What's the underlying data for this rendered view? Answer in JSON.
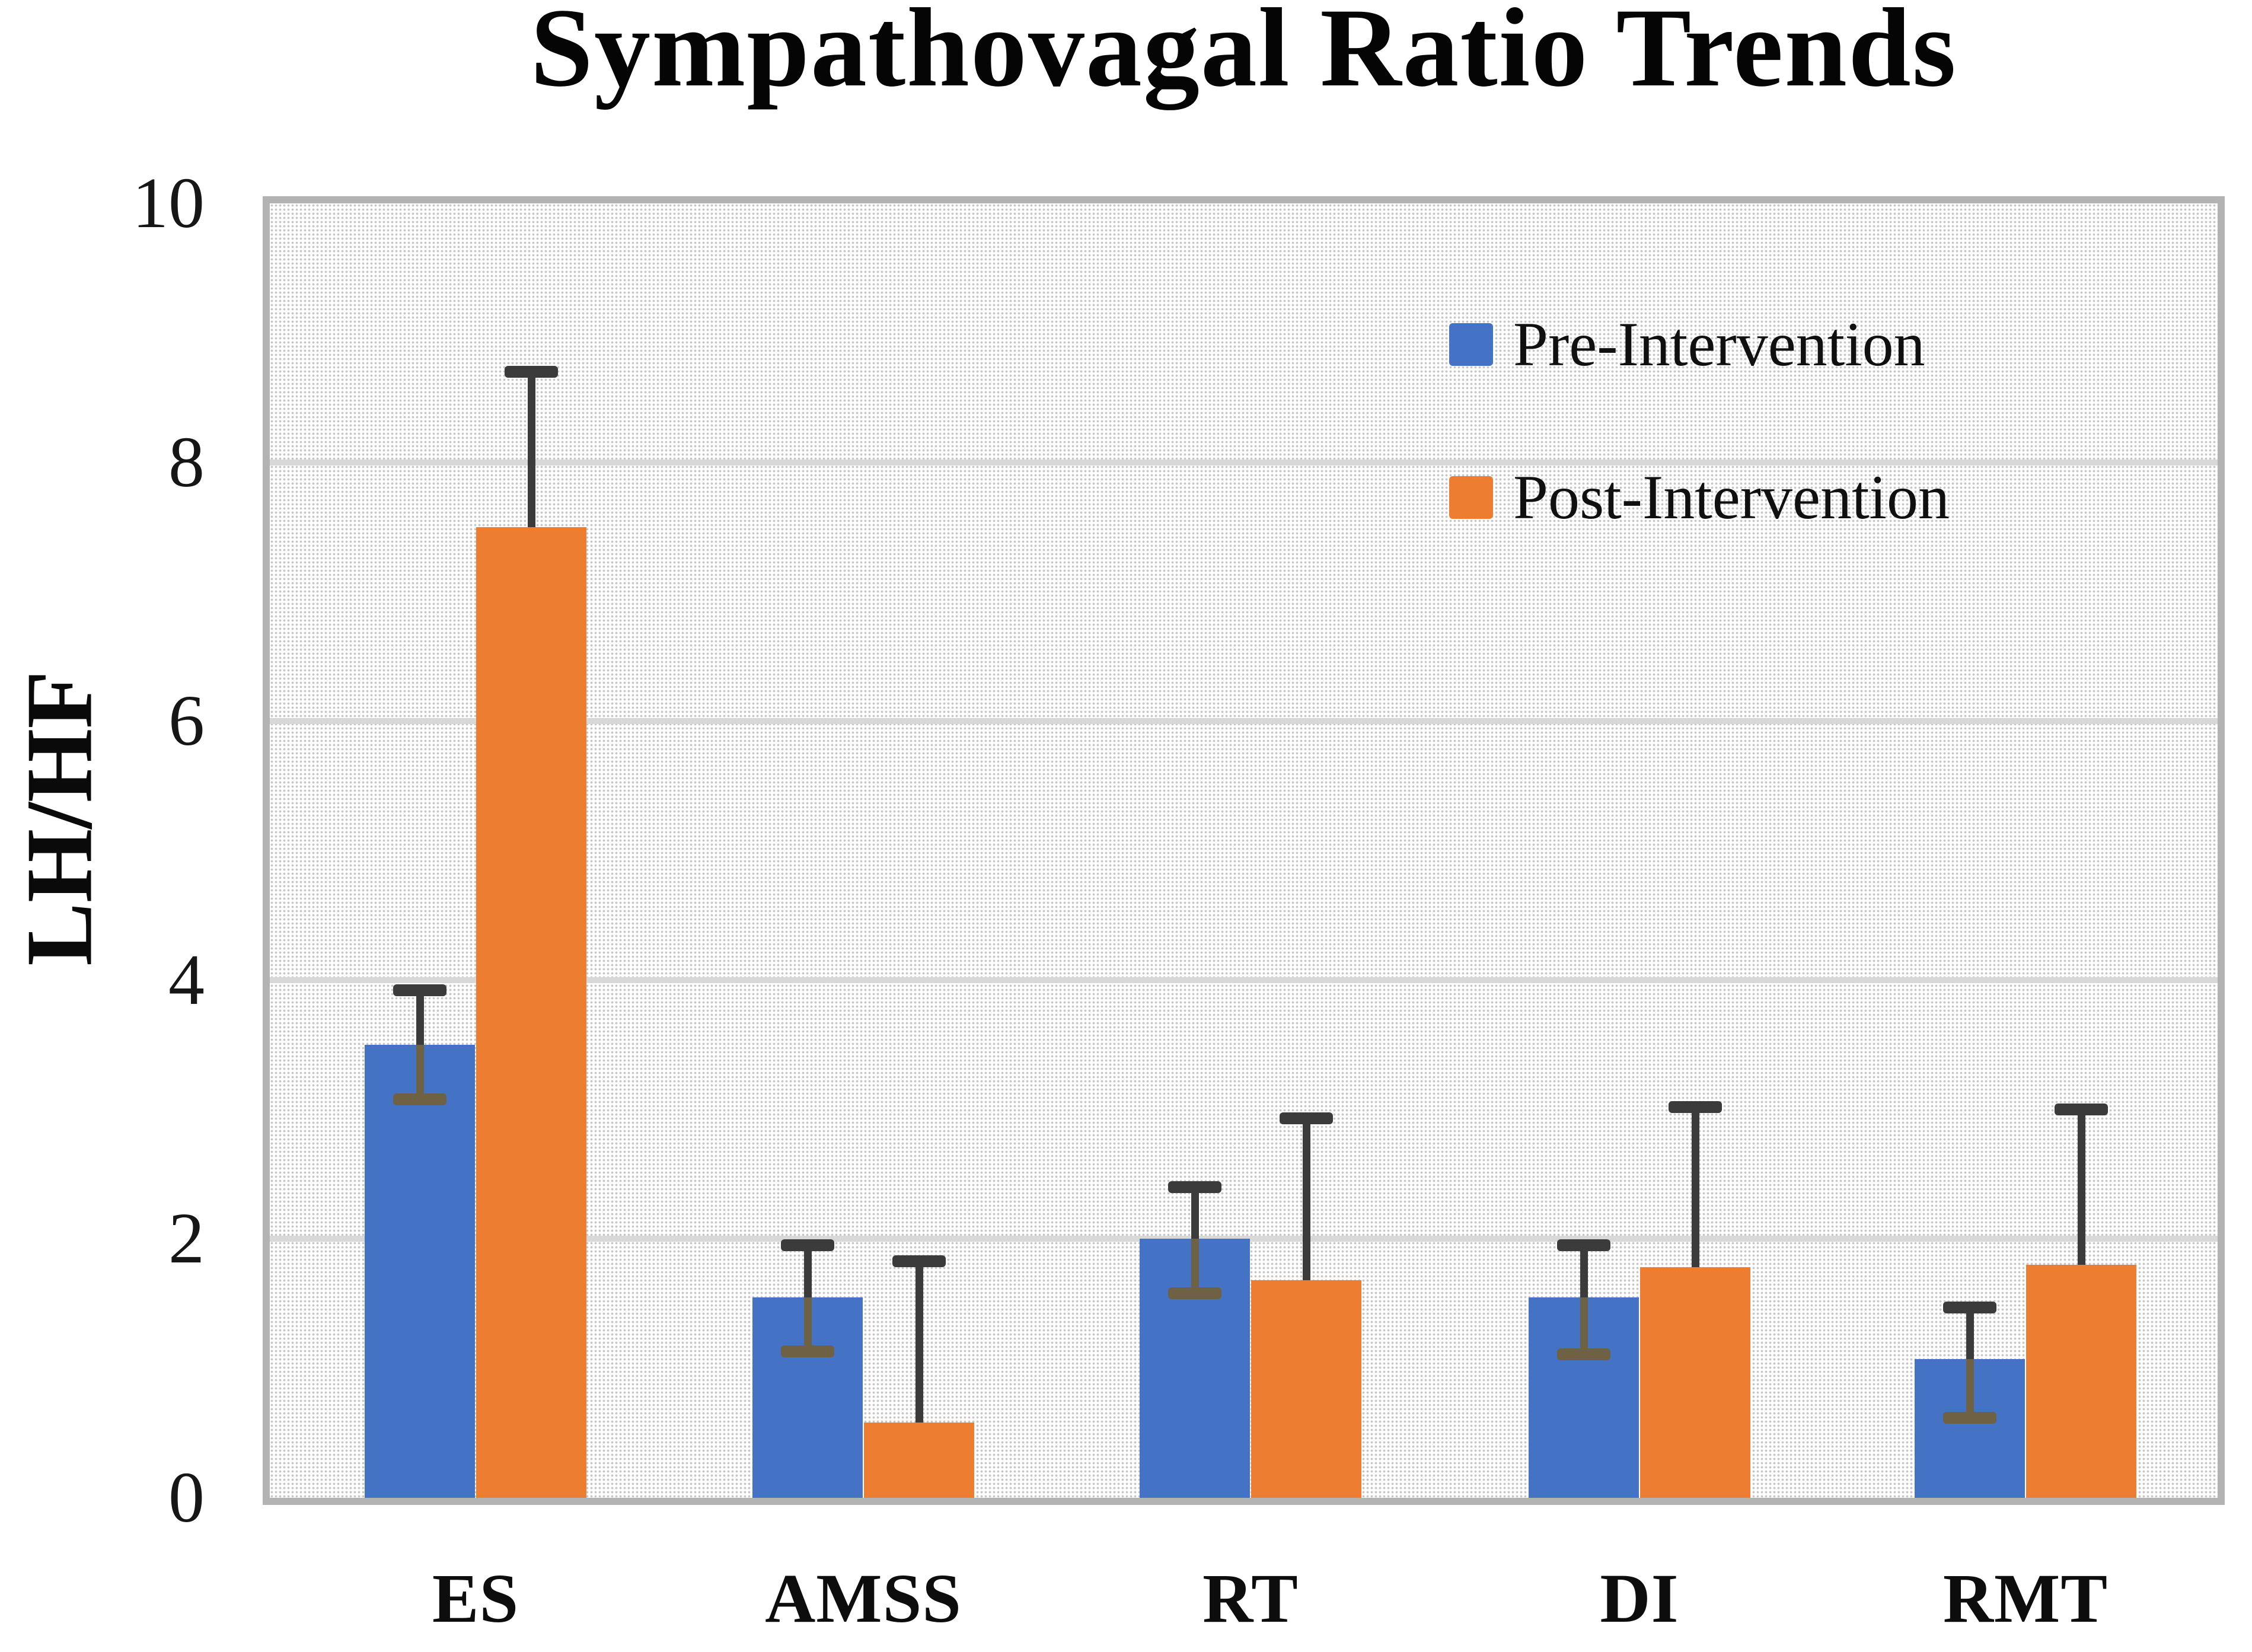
{
  "title": "Sympathovagal Ratio Trends",
  "legend": {
    "items": [
      {
        "label": "Pre-Intervention",
        "color": "#4472C4"
      },
      {
        "label": "Post-Intervention",
        "color": "#ED7D31"
      }
    ],
    "position": "upper right"
  },
  "y_axis": {
    "label": "LH/HF",
    "ticks": [
      0,
      2,
      4,
      6,
      8,
      10
    ]
  },
  "colors": {
    "pre_bar": "#4472C4",
    "post_bar": "#ED7D31",
    "error_bar_upper": "#3b3b3b",
    "error_bar_inside_bar": "#6e6144",
    "gridline": "#d8d8d8",
    "plot_border": "#b3b3b3",
    "pattern_dot": "#c6c6c6"
  },
  "chart_data": {
    "type": "bar",
    "title": "Sympathovagal Ratio Trends",
    "xlabel": "",
    "ylabel": "LH/HF",
    "ylim": [
      0,
      10
    ],
    "yticks": [
      0,
      2,
      4,
      6,
      8,
      10
    ],
    "grid": true,
    "legend_position": "upper right",
    "categories": [
      "ES",
      "AMSS",
      "RT",
      "DI",
      "RMT"
    ],
    "series": [
      {
        "name": "Pre-Intervention",
        "color": "#4472C4",
        "values": [
          3.5,
          1.55,
          2.0,
          1.55,
          1.07
        ],
        "err_up": [
          0.42,
          0.4,
          0.4,
          0.4,
          0.4
        ],
        "err_down": [
          0.42,
          0.42,
          0.42,
          0.44,
          0.45
        ]
      },
      {
        "name": "Post-Intervention",
        "color": "#ED7D31",
        "values": [
          7.5,
          0.58,
          1.68,
          1.78,
          1.8
        ],
        "err_up": [
          1.2,
          1.25,
          1.25,
          1.24,
          1.2
        ],
        "err_down": [
          0.0,
          0.0,
          0.0,
          0.0,
          0.0
        ]
      }
    ]
  }
}
